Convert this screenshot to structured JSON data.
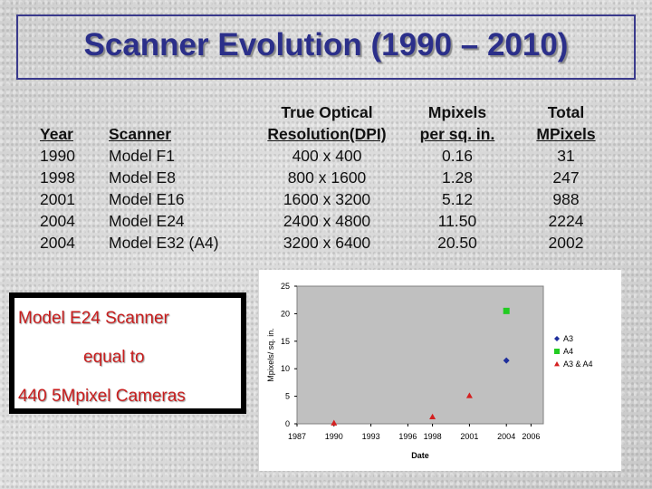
{
  "slide": {
    "title": "Scanner Evolution (1990 – 2010)"
  },
  "table": {
    "headers": {
      "year": "Year",
      "scanner": "Scanner",
      "res_line1": "True Optical",
      "res_line2": "Resolution(DPI)",
      "mp_line1": "Mpixels",
      "mp_line2": "per sq. in.",
      "total_line1": "Total",
      "total_line2": "MPixels"
    },
    "rows": [
      {
        "year": "1990",
        "scanner": "Model F1",
        "resolution": "400 x 400",
        "mpixels_sq_in": "0.16",
        "total_mpixels": "31"
      },
      {
        "year": "1998",
        "scanner": "Model E8",
        "resolution": "800 x 1600",
        "mpixels_sq_in": "1.28",
        "total_mpixels": "247"
      },
      {
        "year": "2001",
        "scanner": "Model E16",
        "resolution": "1600 x 3200",
        "mpixels_sq_in": "5.12",
        "total_mpixels": "988"
      },
      {
        "year": "2004",
        "scanner": "Model E24",
        "resolution": "2400 x 4800",
        "mpixels_sq_in": "11.50",
        "total_mpixels": "2224"
      },
      {
        "year": "2004",
        "scanner": "Model E32 (A4)",
        "resolution": "3200 x 6400",
        "mpixels_sq_in": "20.50",
        "total_mpixels": "2002"
      }
    ]
  },
  "callout": {
    "line1": "Model E24 Scanner",
    "line2": "equal to",
    "line3": "440 5Mpixel Cameras",
    "text_color": "#c81e1e"
  },
  "chart_data": {
    "type": "scatter",
    "title": "",
    "xlabel": "Date",
    "ylabel": "Mpixels/ sq. in.",
    "xlim": [
      1987,
      2007
    ],
    "ylim": [
      0,
      25
    ],
    "x_ticks": [
      "1987",
      "1990",
      "1993",
      "1996",
      "1998",
      "2001",
      "2004",
      "2006"
    ],
    "y_ticks": [
      "0",
      "5",
      "10",
      "15",
      "20",
      "25"
    ],
    "grid": false,
    "legend_position": "right",
    "series": [
      {
        "name": "A3",
        "marker": "diamond",
        "color": "#1f2f9c",
        "points": [
          {
            "x": 2004,
            "y": 11.5
          }
        ]
      },
      {
        "name": "A4",
        "marker": "square",
        "color": "#22cc22",
        "points": [
          {
            "x": 2004,
            "y": 20.5
          }
        ]
      },
      {
        "name": "A3 & A4",
        "marker": "triangle",
        "color": "#d42020",
        "points": [
          {
            "x": 1990,
            "y": 0.16
          },
          {
            "x": 1998,
            "y": 1.28
          },
          {
            "x": 2001,
            "y": 5.12
          }
        ]
      }
    ]
  }
}
